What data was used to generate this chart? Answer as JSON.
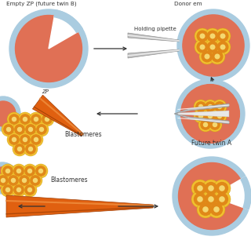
{
  "bg_color": "#ffffff",
  "embryo_outer_color": "#aacce0",
  "embryo_inner_color": "#e07055",
  "blastomere_outer": "#f0c030",
  "blastomere_inner": "#e08818",
  "blastomere_dot": "#f5d870",
  "arrow_color": "#333333",
  "text_color": "#333333",
  "pipette_gray": "#c0c0c0",
  "pipette_gray_dark": "#909090",
  "pipette_gray_light": "#e8e8e8",
  "needle_orange": "#e06010",
  "needle_orange_light": "#f09040",
  "needle_line": "#c8c8c8",
  "title1": "Empty ZP (future twin B)",
  "title2": "Donor em",
  "label_blastomeres1": "Blastomeres",
  "label_blastomeres2": "Blastomeres",
  "label_holding": "Holding pipette",
  "label_zp": "ZP",
  "label_future_twin_a": "Future twin A",
  "figsize": [
    3.2,
    3.2
  ],
  "dpi": 100
}
